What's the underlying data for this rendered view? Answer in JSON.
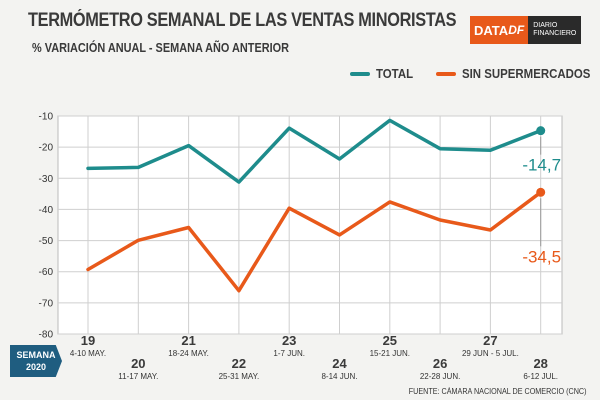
{
  "header": {
    "title": "TERMÓMETRO SEMANAL DE LAS VENTAS MINORISTAS",
    "subtitle": "% VARIACIÓN ANUAL - SEMANA AÑO ANTERIOR"
  },
  "logo": {
    "main": "DATA",
    "accent": "DF",
    "side_line1": "DIARIO",
    "side_line2": "FINANCIERO"
  },
  "week_badge": {
    "line1": "SEMANA",
    "line2": "2020"
  },
  "source": "FUENTE: CÁMARA NACIONAL DE COMERCIO (CNC)",
  "colors": {
    "total": "#1e8c8c",
    "sin": "#e8591a",
    "badge": "#1f5d80",
    "brand": "#e8591a"
  },
  "chart_data": {
    "type": "line",
    "categories": [
      "19",
      "20",
      "21",
      "22",
      "23",
      "24",
      "25",
      "26",
      "27",
      "28"
    ],
    "category_dates": [
      "4-10 MAY.",
      "11-17 MAY.",
      "18-24 MAY.",
      "25-31 MAY.",
      "1-7 JUN.",
      "8-14 JUN.",
      "15-21 JUN.",
      "22-28 JUN.",
      "29 JUN - 5 JUL.",
      "6-12 JUL."
    ],
    "series": [
      {
        "name": "TOTAL",
        "color": "#1e8c8c",
        "values": [
          -26.8,
          -26.5,
          -19.5,
          -31.2,
          -13.9,
          -23.8,
          -11.4,
          -20.5,
          -21.0,
          -14.7
        ]
      },
      {
        "name": "SIN SUPERMERCADOS",
        "color": "#e8591a",
        "values": [
          -59.3,
          -49.9,
          -45.8,
          -66.1,
          -39.6,
          -48.2,
          -37.6,
          -43.4,
          -46.6,
          -34.5
        ]
      }
    ],
    "end_labels": [
      "-14,7",
      "-34,5"
    ],
    "ylim": [
      -80,
      -10
    ],
    "yticks": [
      -10,
      -20,
      -30,
      -40,
      -50,
      -60,
      -70,
      -80
    ],
    "ytick_labels": [
      "-10",
      "-20",
      "-30",
      "-40",
      "-50",
      "-60",
      "-70",
      "-80"
    ],
    "legend_position": "top-right",
    "grid": true
  }
}
